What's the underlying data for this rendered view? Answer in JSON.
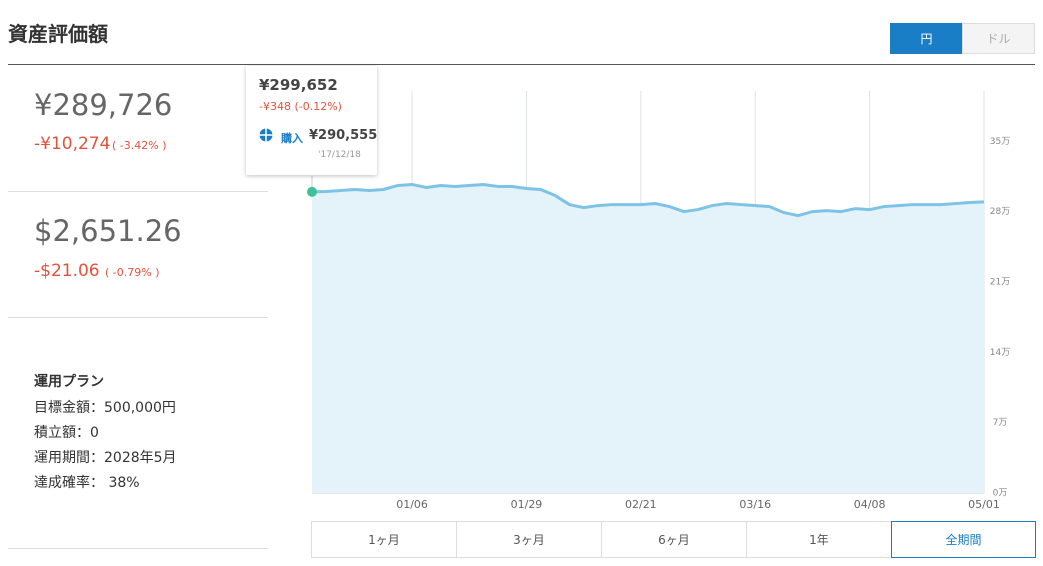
{
  "header": {
    "title": "資産評価額",
    "toggle": [
      "円",
      "ドル"
    ]
  },
  "summary": [
    {
      "value": "¥289,726",
      "change": "-¥10,274",
      "change_pct": "( -3.42% )"
    },
    {
      "value": "$2,651.26",
      "change": "-$21.06",
      "change_pct": "( -0.79% )"
    }
  ],
  "plan": {
    "title": "運用プラン",
    "items": [
      "目標金額：500,000円",
      "積立額：0",
      "運用期間：2028年5月",
      "達成確率： 38%"
    ]
  },
  "tooltip": {
    "value": "¥299,652",
    "change": "-¥348 (-0.12%)",
    "label": "購入",
    "amount": "¥290,555",
    "date": "'17/12/18"
  },
  "periods": [
    "1ヶ月",
    "3ヶ月",
    "6ヶ月",
    "1年",
    "全期間"
  ],
  "chart_data": {
    "type": "line",
    "color": "#7ec3e6",
    "fill": "#e4f2fa",
    "marker_color": "#3cc29a",
    "categories": [
      null,
      null,
      null,
      null,
      null,
      null,
      null,
      "01/06",
      null,
      null,
      null,
      null,
      null,
      null,
      null,
      "01/29",
      null,
      null,
      null,
      null,
      null,
      null,
      null,
      "02/21",
      null,
      null,
      null,
      null,
      null,
      null,
      null,
      "03/16",
      null,
      null,
      null,
      null,
      null,
      null,
      null,
      "04/08",
      null,
      null,
      null,
      null,
      null,
      null,
      null,
      "05/01"
    ],
    "values": [
      299652,
      300000,
      301000,
      302000,
      301000,
      302000,
      306000,
      307000,
      304000,
      306000,
      305000,
      306000,
      307000,
      305000,
      305000,
      303000,
      302000,
      296000,
      287000,
      284000,
      286000,
      287000,
      287000,
      287000,
      288000,
      285000,
      280000,
      282000,
      286000,
      288000,
      287000,
      286000,
      285000,
      279000,
      276000,
      280000,
      281000,
      280000,
      283000,
      282000,
      285000,
      286000,
      287000,
      287000,
      287000,
      288000,
      289000,
      289726
    ],
    "ylim": [
      0,
      400000
    ],
    "yticks": [
      {
        "value": 0,
        "label": "0万"
      },
      {
        "value": 70000,
        "label": "7万"
      },
      {
        "value": 140000,
        "label": "14万"
      },
      {
        "value": 210000,
        "label": "21万"
      },
      {
        "value": 280000,
        "label": "28万"
      },
      {
        "value": 350000,
        "label": "35万"
      }
    ],
    "grid": true
  }
}
